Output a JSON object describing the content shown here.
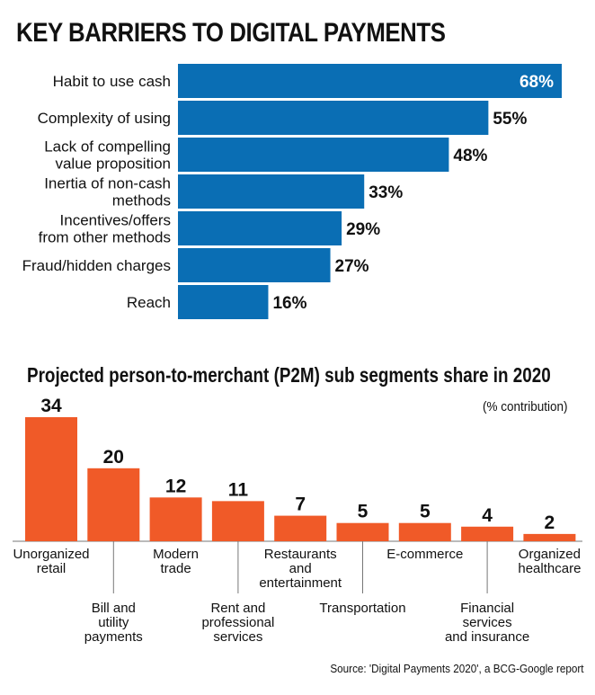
{
  "chart_data": [
    {
      "type": "bar",
      "orientation": "horizontal",
      "title": "KEY BARRIERS TO DIGITAL PAYMENTS",
      "categories": [
        [
          "Habit to use cash"
        ],
        [
          "Complexity of using"
        ],
        [
          "Lack of compelling",
          "value proposition"
        ],
        [
          "Inertia of non-cash",
          "methods"
        ],
        [
          "Incentives/offers",
          "from other methods"
        ],
        [
          "Fraud/hidden charges"
        ],
        [
          "Reach"
        ]
      ],
      "values": [
        68,
        55,
        48,
        33,
        29,
        27,
        16
      ],
      "value_labels": [
        "68%",
        "55%",
        "48%",
        "33%",
        "29%",
        "27%",
        "16%"
      ],
      "xlim": [
        0,
        68
      ],
      "color": "#0a6eb4"
    },
    {
      "type": "bar",
      "orientation": "vertical",
      "title": "Projected person-to-merchant (P2M) sub segments share in 2020",
      "subtitle": "(% contribution)",
      "categories": [
        [
          "Unorganized",
          "retail"
        ],
        [
          "Bill and",
          "utility",
          "payments"
        ],
        [
          "Modern",
          "trade"
        ],
        [
          "Rent and",
          "professional",
          "services"
        ],
        [
          "Restaurants",
          "and",
          "entertainment"
        ],
        [
          "Transportation"
        ],
        [
          "E-commerce"
        ],
        [
          "Financial",
          "services",
          "and insurance"
        ],
        [
          "Organized",
          "healthcare"
        ]
      ],
      "values": [
        34,
        20,
        12,
        11,
        7,
        5,
        5,
        4,
        2
      ],
      "value_labels": [
        "34",
        "20",
        "12",
        "11",
        "7",
        "5",
        "5",
        "4",
        "2"
      ],
      "ylim": [
        0,
        34
      ],
      "color": "#f05a28"
    }
  ],
  "source": "Source: 'Digital Payments 2020', a BCG-Google report"
}
